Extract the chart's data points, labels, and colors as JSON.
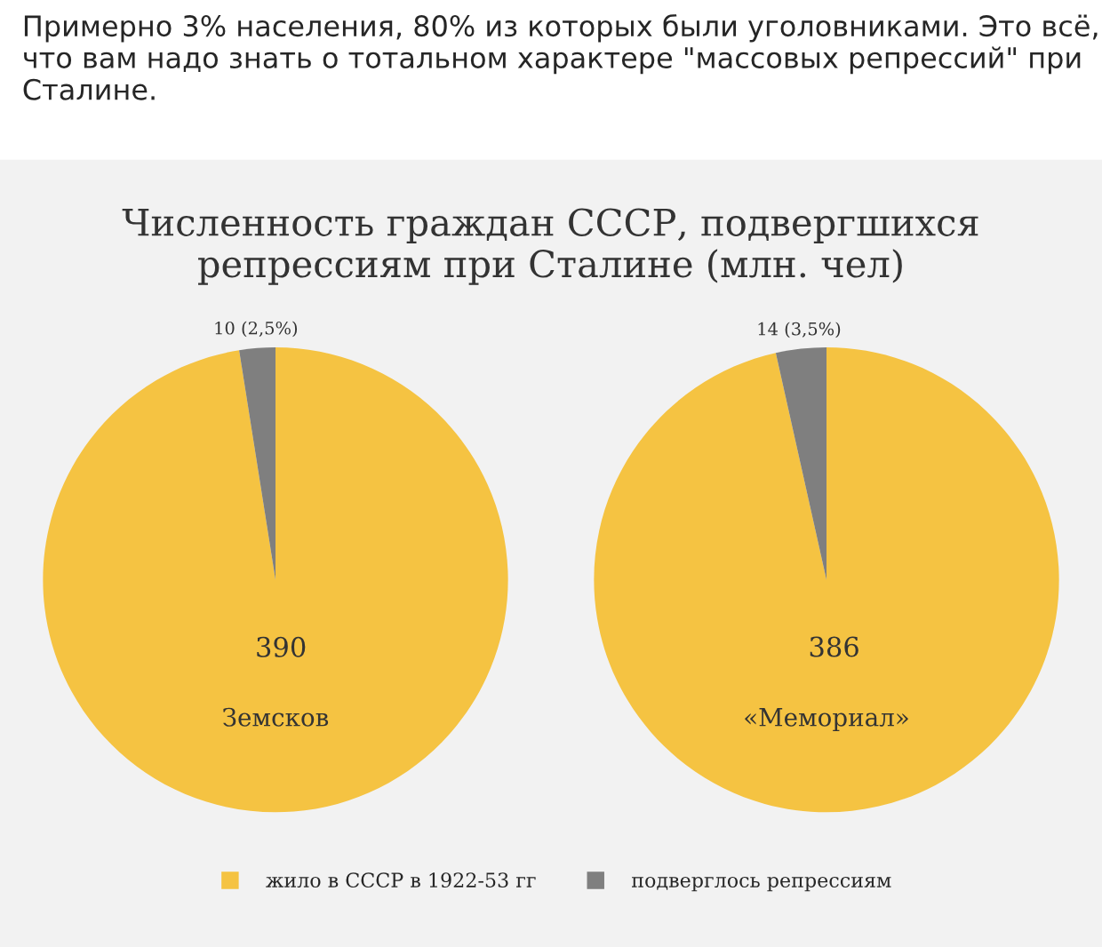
{
  "chart_data": [
    {
      "type": "pie",
      "title": "Численность граждан СССР, подвергшихся репрессиям при Сталине (млн. чел)",
      "subtitle": "Земсков",
      "annotations": [
        "Примерно 3% населения, 80% из которых были уголовниками. Это всё, что вам надо знать о тотальном характере \"массовых репрессий\" при Сталине."
      ],
      "categories": [
        "жило в СССР в 1922-53 гг",
        "подверглось репрессиям"
      ],
      "values": [
        390,
        10
      ],
      "value_labels": [
        "390",
        "10 (2,5%)"
      ],
      "colors": [
        "#f5c342",
        "#7f7f7f"
      ],
      "legend": "bottom"
    },
    {
      "type": "pie",
      "subtitle": "«Мемориал»",
      "categories": [
        null,
        null
      ],
      "values": [
        386,
        14
      ],
      "value_labels": [
        "386",
        "14 (3,5%)"
      ],
      "colors": [
        "#f5c342",
        "#7f7f7f"
      ]
    }
  ]
}
